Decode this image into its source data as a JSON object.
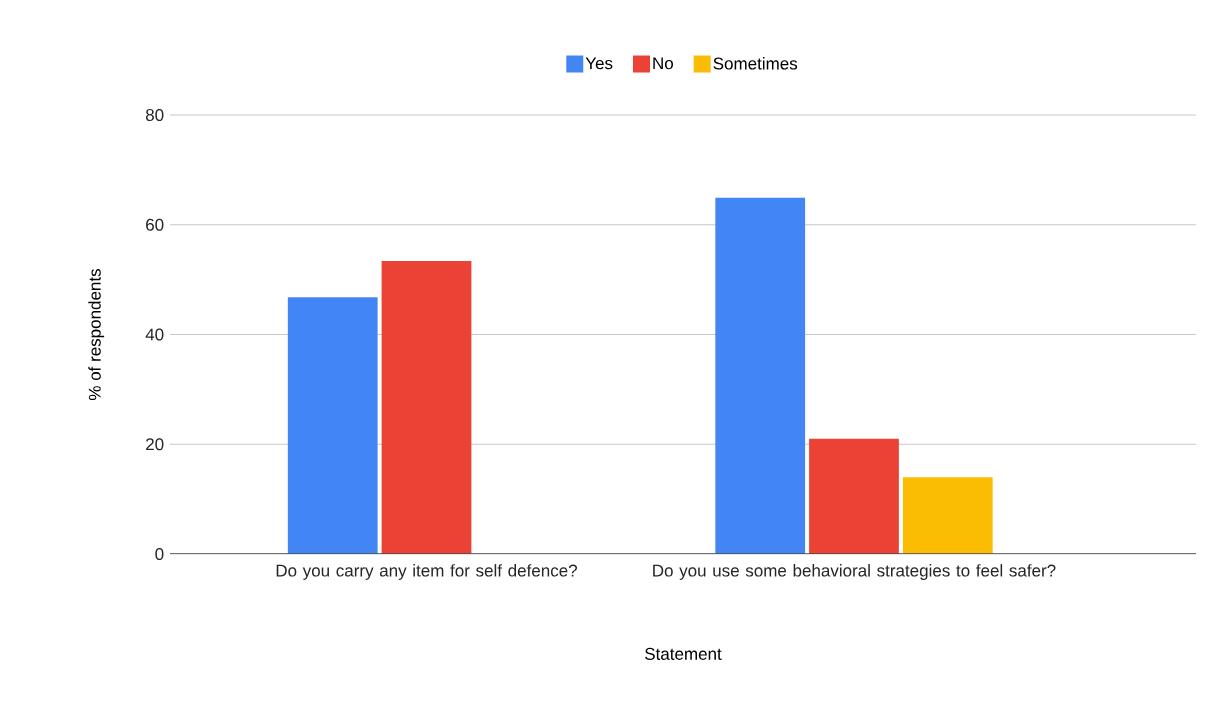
{
  "chart_data": {
    "type": "bar",
    "xlabel": "Statement",
    "ylabel": "% of respondents",
    "categories": [
      "Do you carry any item for self defence?",
      "Do you use some behavioral strategies to feel safer?"
    ],
    "series": [
      {
        "name": "Yes",
        "color": "#4285f4",
        "values": [
          46.8,
          64.9
        ]
      },
      {
        "name": "No",
        "color": "#ea4335",
        "values": [
          53.4,
          21.0
        ]
      },
      {
        "name": "Sometimes",
        "color": "#fbbc04",
        "values": [
          null,
          14.0
        ]
      }
    ],
    "ylim": [
      0,
      80
    ],
    "yticks": [
      0,
      20,
      40,
      60,
      80
    ],
    "grid": "y",
    "legend": "top"
  }
}
